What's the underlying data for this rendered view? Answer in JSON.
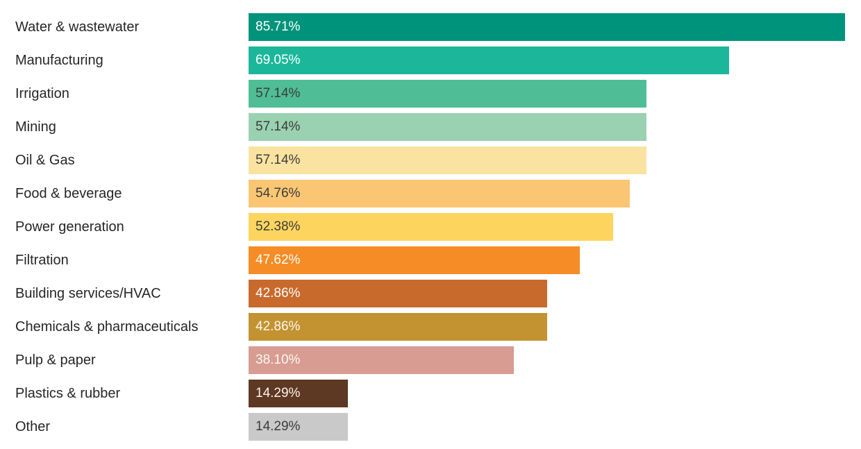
{
  "chart_data": {
    "type": "bar",
    "orientation": "horizontal",
    "title": "",
    "xlabel": "",
    "ylabel": "",
    "xlim": [
      0,
      88
    ],
    "grid": false,
    "legend": false,
    "categories": [
      "Water & wastewater",
      "Manufacturing",
      "Irrigation",
      "Mining",
      "Oil & Gas",
      "Food & beverage",
      "Power generation",
      "Filtration",
      "Building services/HVAC",
      "Chemicals & pharmaceuticals",
      "Pulp & paper",
      "Plastics & rubber",
      "Other"
    ],
    "values": [
      85.71,
      69.05,
      57.14,
      57.14,
      57.14,
      54.76,
      52.38,
      47.62,
      42.86,
      42.86,
      38.1,
      14.29,
      14.29
    ],
    "value_labels": [
      "85.71%",
      "69.05%",
      "57.14%",
      "57.14%",
      "57.14%",
      "54.76%",
      "52.38%",
      "47.62%",
      "42.86%",
      "42.86%",
      "38.10%",
      "14.29%",
      "14.29%"
    ],
    "bar_colors": [
      "#00937B",
      "#1CB79B",
      "#4FBD96",
      "#9AD1B1",
      "#FAE3A1",
      "#FAC673",
      "#FDD55E",
      "#F68C25",
      "#C96A2D",
      "#C39231",
      "#D89C92",
      "#5D3823",
      "#C9C9C9"
    ],
    "value_text_colors": [
      "#FFFFFF",
      "#FFFFFF",
      "#3C3C3C",
      "#3C3C3C",
      "#3C3C3C",
      "#3C3C3C",
      "#3C3C3C",
      "#FFFFFF",
      "#FFFFFF",
      "#FDF8EE",
      "#FDF8EE",
      "#FDF4E7",
      "#3C3C3C"
    ],
    "category_text_color": "#262626",
    "background_color": "#FFFFFF"
  }
}
